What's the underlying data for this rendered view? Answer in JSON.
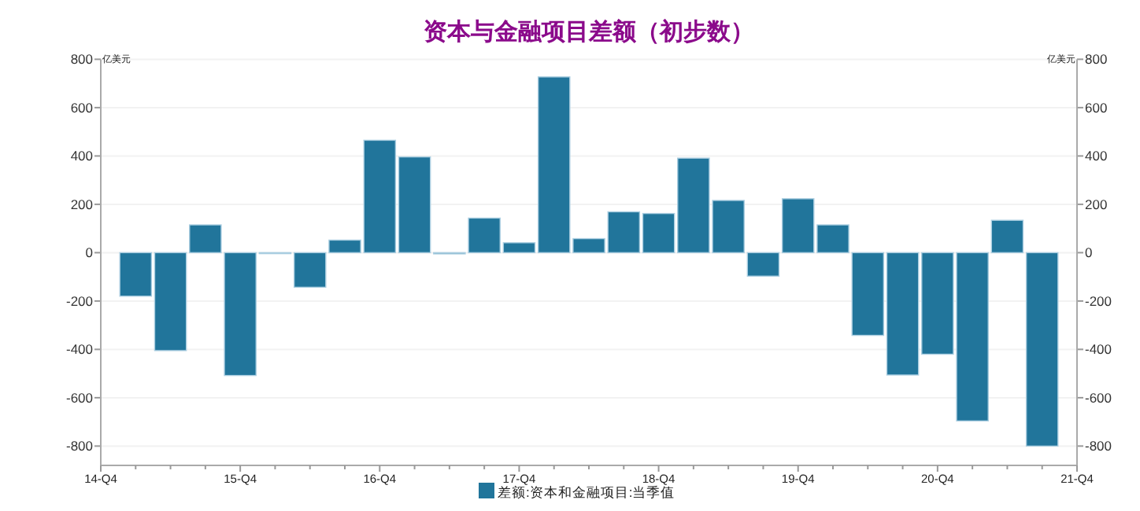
{
  "chart_data": {
    "type": "bar",
    "title": "资本与金融项目差额（初步数）",
    "ylabel": "亿美元",
    "y2label": "亿美元",
    "categories": [
      "14-Q4",
      null,
      null,
      null,
      "15-Q4",
      null,
      null,
      null,
      "16-Q4",
      null,
      null,
      null,
      "17-Q4",
      null,
      null,
      null,
      "18-Q4",
      null,
      null,
      null,
      "19-Q4",
      null,
      null,
      null,
      "20-Q4",
      null,
      null,
      null,
      "21-Q4"
    ],
    "series": [
      {
        "name": "差额:资本和金融项目:当季值",
        "color": "#21759b",
        "values": [
          null,
          -180,
          -405,
          115,
          -508,
          -3,
          -143,
          52,
          465,
          396,
          -5,
          143,
          41,
          727,
          58,
          169,
          162,
          391,
          216,
          -97,
          223,
          115,
          -342,
          -506,
          -420,
          -696,
          134,
          -800,
          null
        ]
      }
    ],
    "ylim": [
      -880,
      800
    ],
    "yticks": [
      -800,
      -600,
      -400,
      -200,
      0,
      200,
      400,
      600,
      800
    ],
    "y2lim": [
      -880,
      800
    ],
    "y2ticks": [
      -800,
      -600,
      -400,
      -200,
      0,
      200,
      400,
      600,
      800
    ],
    "grid": "y",
    "legend": "bottom"
  }
}
